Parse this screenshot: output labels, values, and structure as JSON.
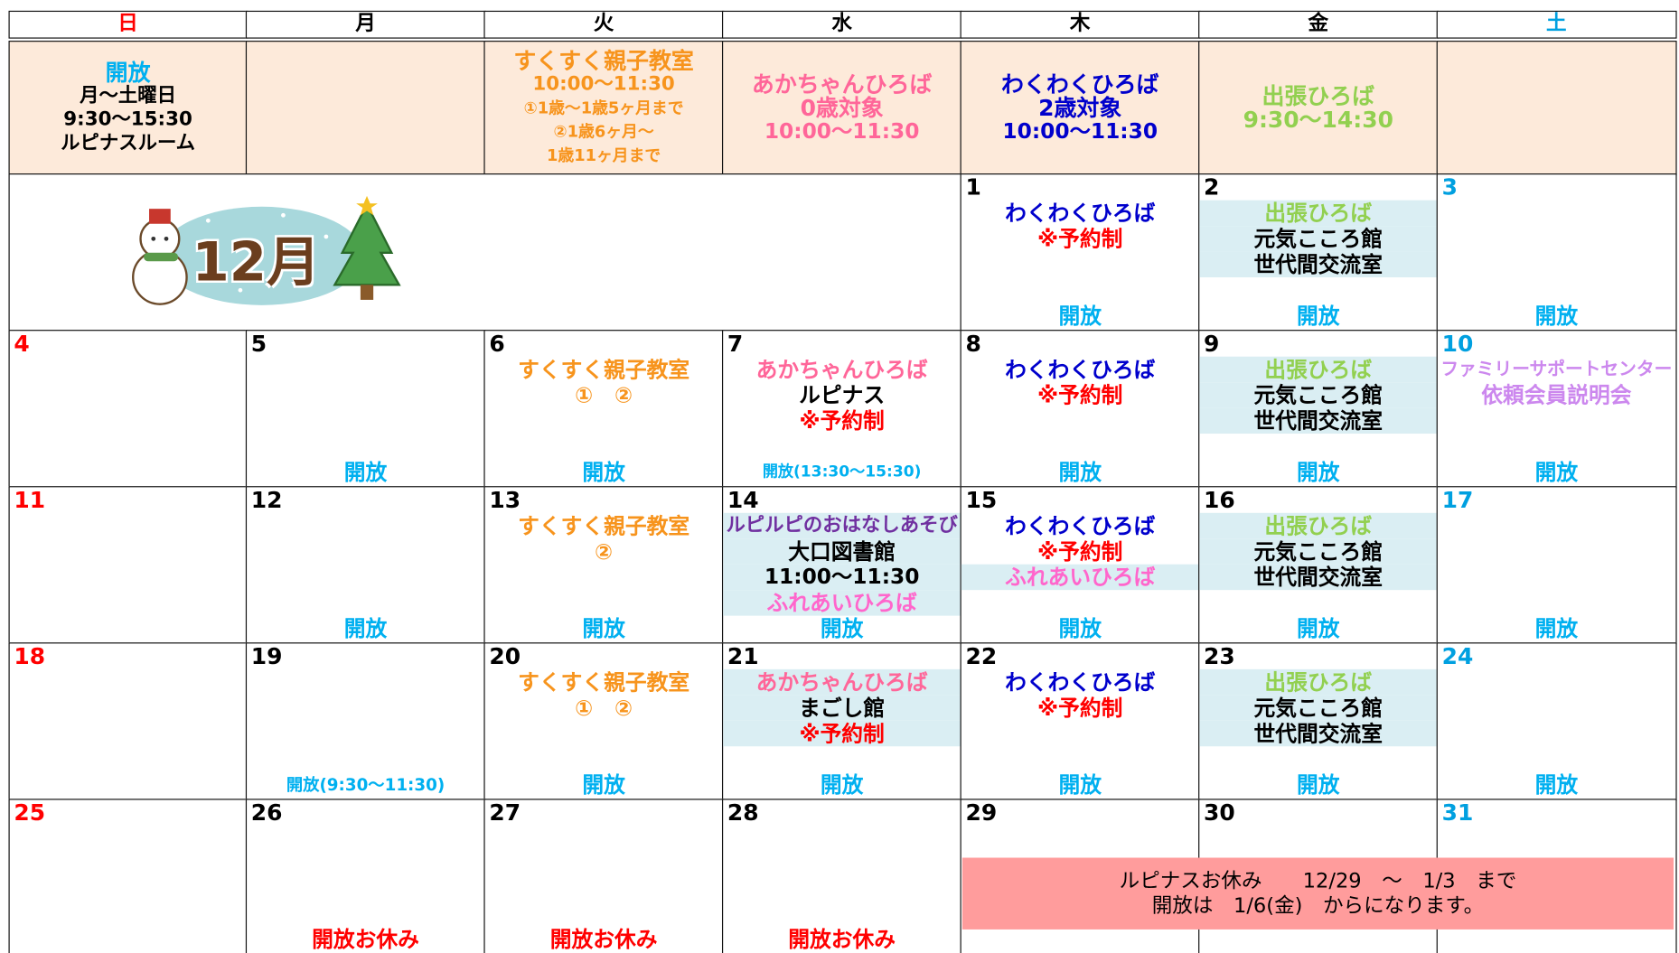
{
  "header": {
    "days": [
      {
        "text": "日",
        "color": "#ff0000"
      },
      {
        "text": "月",
        "color": "#000000"
      },
      {
        "text": "火",
        "color": "#000000"
      },
      {
        "text": "水",
        "color": "#000000"
      },
      {
        "text": "木",
        "color": "#000000"
      },
      {
        "text": "金",
        "color": "#000000"
      },
      {
        "text": "土",
        "color": "#00a0e0"
      }
    ]
  },
  "info_row": [
    {
      "items": [
        {
          "text": "開放",
          "color": "#00b0f0"
        },
        {
          "text": "月～土曜日",
          "color": "#000000"
        },
        {
          "text": "9:30～15:30",
          "color": "#000000"
        },
        {
          "text": "ルピナスルーム",
          "color": "#000000"
        }
      ]
    },
    {
      "items": []
    },
    {
      "items": [
        {
          "text": "すくすく親子教室",
          "color": "#f7941d"
        },
        {
          "text": "10:00～11:30",
          "color": "#f7941d"
        },
        {
          "text": "①1歳～1歳5ヶ月まで",
          "color": "#f7941d"
        },
        {
          "text": "②1歳6ヶ月～",
          "color": "#f7941d"
        },
        {
          "text": "1歳11ヶ月まで",
          "color": "#f7941d"
        }
      ]
    },
    {
      "items": [
        {
          "text": "あかちゃんひろば",
          "color": "#ff6699"
        },
        {
          "text": "0歳対象",
          "color": "#ff6699"
        },
        {
          "text": "10:00～11:30",
          "color": "#ff6699"
        }
      ]
    },
    {
      "items": [
        {
          "text": "わくわくひろば",
          "color": "#0000cc"
        },
        {
          "text": "2歳対象",
          "color": "#0000cc"
        },
        {
          "text": "10:00～11:30",
          "color": "#0000cc"
        }
      ]
    },
    {
      "items": [
        {
          "text": "出張ひろば",
          "color": "#92d050"
        },
        {
          "text": "9:30～14:30",
          "color": "#92d050"
        }
      ]
    },
    {
      "items": []
    }
  ],
  "month_label": "12月",
  "weeks": [
    [
      null,
      null,
      null,
      null,
      {
        "date": "1",
        "items": [
          {
            "text": "わくわくひろば",
            "color": "#0000cc"
          },
          {
            "text": "※予約制",
            "color": "#ff0000"
          }
        ],
        "open": {
          "text": "開放",
          "color": "#00b0f0"
        }
      },
      {
        "date": "2",
        "items": [
          {
            "text": "出張ひろば",
            "color": "#92d050",
            "bg": "#daeef3"
          },
          {
            "text": "元気こころ館",
            "color": "#000000",
            "bg": "#daeef3"
          },
          {
            "text": "世代間交流室",
            "color": "#000000",
            "bg": "#daeef3"
          }
        ],
        "open": {
          "text": "開放",
          "color": "#00b0f0"
        }
      },
      {
        "date": "3",
        "items": [],
        "open": {
          "text": "開放",
          "color": "#00b0f0"
        }
      }
    ],
    [
      {
        "date": "4",
        "items": []
      },
      {
        "date": "5",
        "items": [],
        "open": {
          "text": "開放",
          "color": "#00b0f0"
        }
      },
      {
        "date": "6",
        "items": [
          {
            "text": "すくすく親子教室",
            "color": "#f7941d"
          },
          {
            "text": "①　②",
            "color": "#f7941d"
          }
        ],
        "open": {
          "text": "開放",
          "color": "#00b0f0"
        }
      },
      {
        "date": "7",
        "items": [
          {
            "text": "あかちゃんひろば",
            "color": "#ff6699"
          },
          {
            "text": "ルピナス",
            "color": "#000000"
          },
          {
            "text": "※予約制",
            "color": "#ff0000"
          }
        ],
        "open": {
          "text": "開放(13:30～15:30)",
          "color": "#00b0f0"
        }
      },
      {
        "date": "8",
        "items": [
          {
            "text": "わくわくひろば",
            "color": "#0000cc"
          },
          {
            "text": "※予約制",
            "color": "#ff0000"
          }
        ],
        "open": {
          "text": "開放",
          "color": "#00b0f0"
        }
      },
      {
        "date": "9",
        "items": [
          {
            "text": "出張ひろば",
            "color": "#92d050",
            "bg": "#daeef3"
          },
          {
            "text": "元気こころ館",
            "color": "#000000",
            "bg": "#daeef3"
          },
          {
            "text": "世代間交流室",
            "color": "#000000",
            "bg": "#daeef3"
          }
        ],
        "open": {
          "text": "開放",
          "color": "#00b0f0"
        }
      },
      {
        "date": "10",
        "items": [
          {
            "text": "ファミリーサポートセンター",
            "color": "#cc88ee"
          },
          {
            "text": "依頼会員説明会",
            "color": "#cc88ee"
          }
        ],
        "open": {
          "text": "開放",
          "color": "#00b0f0"
        }
      }
    ],
    [
      {
        "date": "11",
        "items": []
      },
      {
        "date": "12",
        "items": [],
        "open": {
          "text": "開放",
          "color": "#00b0f0"
        }
      },
      {
        "date": "13",
        "items": [
          {
            "text": "すくすく親子教室",
            "color": "#f7941d"
          },
          {
            "text": "②",
            "color": "#f7941d"
          }
        ],
        "open": {
          "text": "開放",
          "color": "#00b0f0"
        }
      },
      {
        "date": "14",
        "items": [
          {
            "text": "ルピルピのおはなしあそび",
            "color": "#7030a0",
            "bg": "#daeef3"
          },
          {
            "text": "大口図書館",
            "color": "#000000",
            "bg": "#daeef3"
          },
          {
            "text": "11:00～11:30",
            "color": "#000000",
            "bg": "#daeef3"
          },
          {
            "text": "ふれあいひろば",
            "color": "#ff66cc",
            "bg": "#daeef3"
          }
        ],
        "open": {
          "text": "開放",
          "color": "#00b0f0"
        }
      },
      {
        "date": "15",
        "items": [
          {
            "text": "わくわくひろば",
            "color": "#0000cc"
          },
          {
            "text": "※予約制",
            "color": "#ff0000"
          },
          {
            "text": "ふれあいひろば",
            "color": "#ff66cc",
            "bg": "#daeef3"
          }
        ],
        "open": {
          "text": "開放",
          "color": "#00b0f0"
        }
      },
      {
        "date": "16",
        "items": [
          {
            "text": "出張ひろば",
            "color": "#92d050",
            "bg": "#daeef3"
          },
          {
            "text": "元気こころ館",
            "color": "#000000",
            "bg": "#daeef3"
          },
          {
            "text": "世代間交流室",
            "color": "#000000",
            "bg": "#daeef3"
          }
        ],
        "open": {
          "text": "開放",
          "color": "#00b0f0"
        }
      },
      {
        "date": "17",
        "items": [],
        "open": {
          "text": "開放",
          "color": "#00b0f0"
        }
      }
    ],
    [
      {
        "date": "18",
        "items": []
      },
      {
        "date": "19",
        "items": [],
        "open": {
          "text": "開放(9:30～11:30)",
          "color": "#00b0f0"
        }
      },
      {
        "date": "20",
        "items": [
          {
            "text": "すくすく親子教室",
            "color": "#f7941d"
          },
          {
            "text": "①　②",
            "color": "#f7941d"
          }
        ],
        "open": {
          "text": "開放",
          "color": "#00b0f0"
        }
      },
      {
        "date": "21",
        "items": [
          {
            "text": "あかちゃんひろば",
            "color": "#ff6699",
            "bg": "#daeef3"
          },
          {
            "text": "まごし館",
            "color": "#000000",
            "bg": "#daeef3"
          },
          {
            "text": "※予約制",
            "color": "#ff0000",
            "bg": "#daeef3"
          }
        ],
        "open": {
          "text": "開放",
          "color": "#00b0f0"
        }
      },
      {
        "date": "22",
        "items": [
          {
            "text": "わくわくひろば",
            "color": "#0000cc"
          },
          {
            "text": "※予約制",
            "color": "#ff0000"
          }
        ],
        "open": {
          "text": "開放",
          "color": "#00b0f0"
        }
      },
      {
        "date": "23",
        "items": [
          {
            "text": "出張ひろば",
            "color": "#92d050",
            "bg": "#daeef3"
          },
          {
            "text": "元気こころ館",
            "color": "#000000",
            "bg": "#daeef3"
          },
          {
            "text": "世代間交流室",
            "color": "#000000",
            "bg": "#daeef3"
          }
        ],
        "open": {
          "text": "開放",
          "color": "#00b0f0"
        }
      },
      {
        "date": "24",
        "items": [],
        "open": {
          "text": "開放",
          "color": "#00b0f0"
        }
      }
    ],
    [
      {
        "date": "25",
        "items": []
      },
      {
        "date": "26",
        "items": [],
        "open": {
          "text": "開放お休み",
          "color": "#ff0000"
        }
      },
      {
        "date": "27",
        "items": [],
        "open": {
          "text": "開放お休み",
          "color": "#ff0000"
        }
      },
      {
        "date": "28",
        "items": [],
        "open": {
          "text": "開放お休み",
          "color": "#ff0000"
        }
      },
      {
        "date": "29",
        "items": []
      },
      {
        "date": "30",
        "items": []
      },
      {
        "date": "31",
        "items": []
      }
    ]
  ],
  "notice": {
    "lines": [
      "ルピナスお休み　　12/29　～　1/3　まで",
      "開放は　1/6(金)　からになります。"
    ]
  }
}
